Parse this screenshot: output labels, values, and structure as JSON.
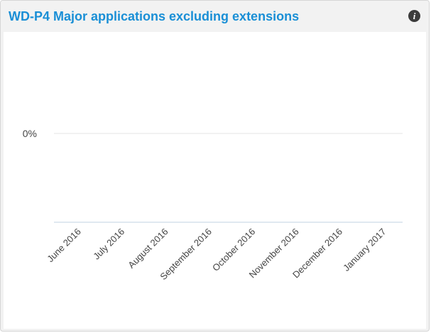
{
  "widget": {
    "title": "WD-P4 Major applications excluding extensions",
    "info_icon": "info-icon"
  },
  "colors": {
    "title": "#1a8fd6",
    "gridline": "#e6e6e6",
    "axis_line": "#c0d0e0",
    "tick_text": "#444444",
    "header_bg": "#f2f2f2",
    "panel_bg": "#ffffff"
  },
  "chart_data": {
    "type": "line",
    "title": "WD-P4 Major applications excluding extensions",
    "xlabel": "",
    "ylabel": "",
    "categories": [
      "June 2016",
      "July 2016",
      "August 2016",
      "September 2016",
      "October 2016",
      "November 2016",
      "December 2016",
      "January 2017"
    ],
    "y_ticks": [
      "0%"
    ],
    "series": [],
    "grid": true,
    "legend": "none"
  }
}
